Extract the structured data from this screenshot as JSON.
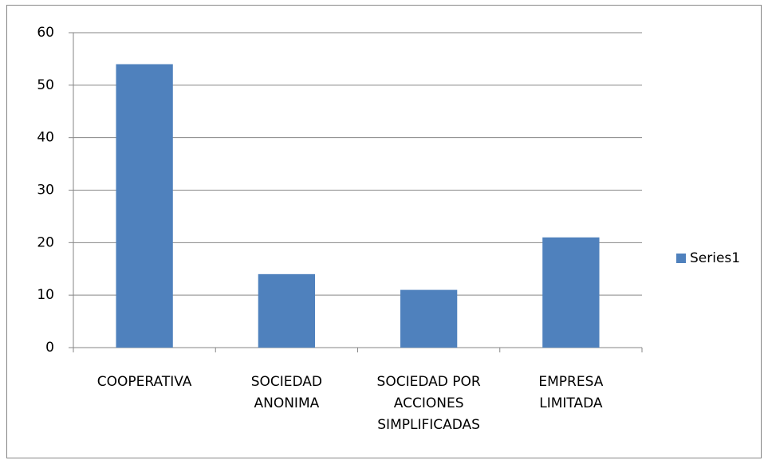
{
  "chart_data": {
    "type": "bar",
    "categories": [
      "COOPERATIVA",
      "SOCIEDAD ANONIMA",
      "SOCIEDAD POR ACCIONES SIMPLIFICADAS",
      "EMPRESA LIMITADA"
    ],
    "series": [
      {
        "name": "Series1",
        "color": "#4f81bd",
        "values": [
          54,
          14,
          11,
          21
        ]
      }
    ],
    "ylim": [
      0,
      60
    ],
    "yticks": [
      0,
      10,
      20,
      30,
      40,
      50,
      60
    ],
    "grid": true,
    "legend": "right"
  }
}
